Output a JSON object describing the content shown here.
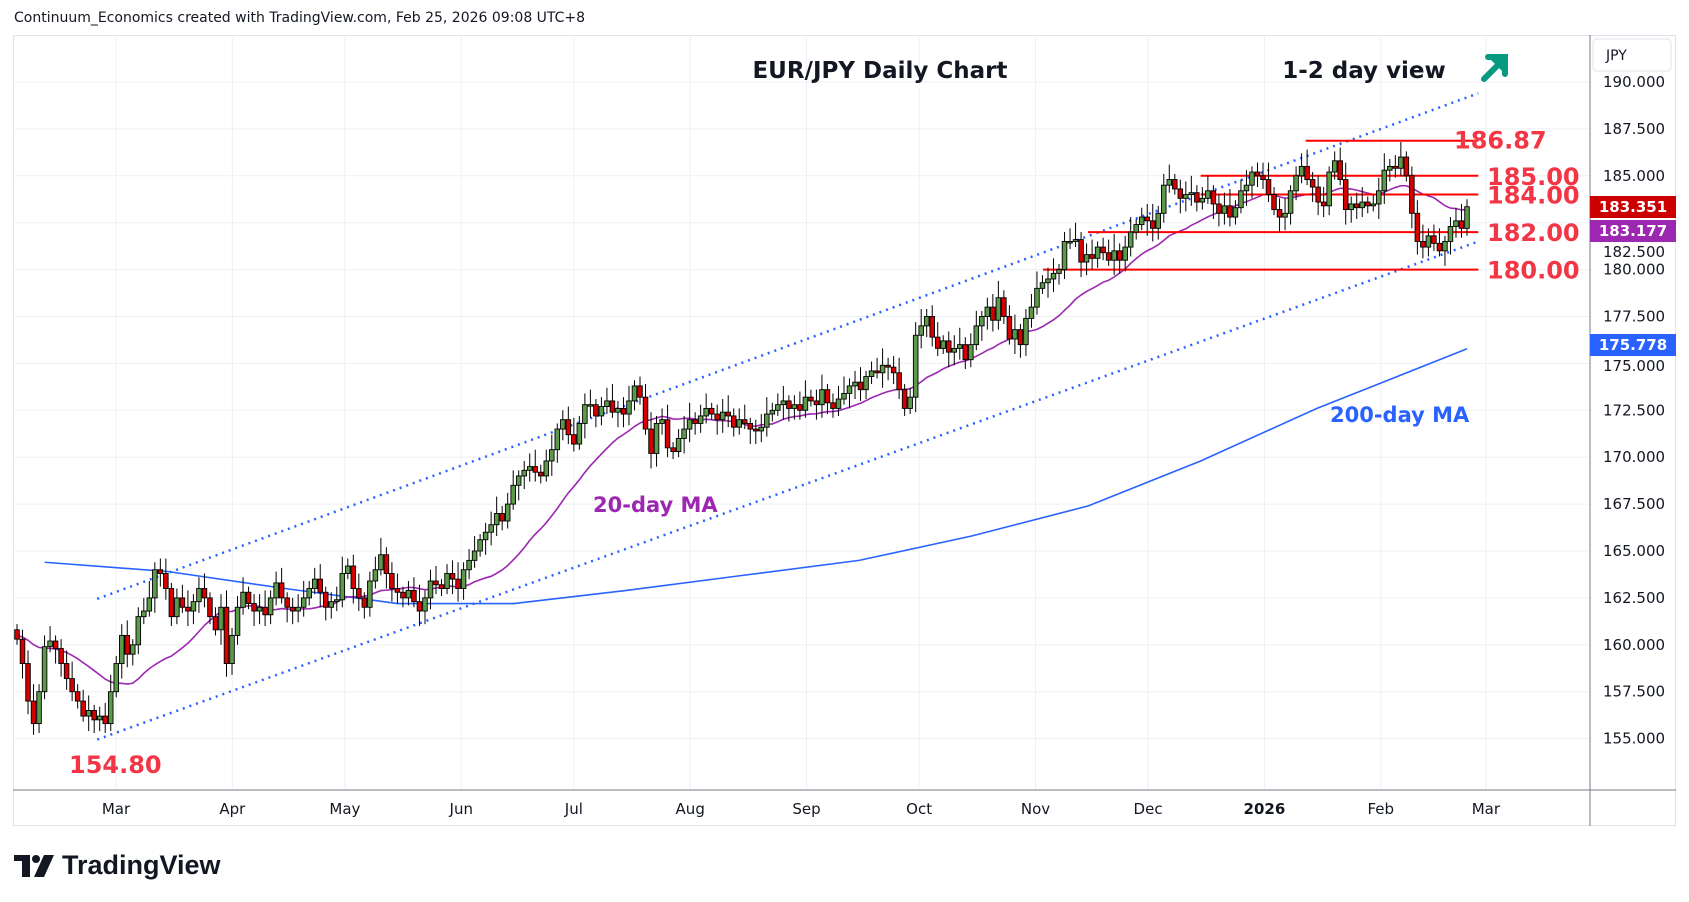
{
  "header": {
    "attribution": "Continuum_Economics created with TradingView.com, Feb 25, 2026 09:08 UTC+8"
  },
  "footer": {
    "logo_text": "TradingView"
  },
  "chart_data": {
    "type": "candlestick",
    "title": "EUR/JPY Daily Chart",
    "subtitle": "1-2 day view",
    "view_icon": "arrow-up-right-icon",
    "currency_label": "JPY",
    "ylim": [
      152.5,
      192
    ],
    "y_ticks": [
      "155.000",
      "157.500",
      "160.000",
      "162.500",
      "165.000",
      "167.500",
      "170.000",
      "172.500",
      "175.000",
      "177.500",
      "180.000",
      "182.500",
      "185.000",
      "187.500",
      "190.000"
    ],
    "x_ticks": [
      "Mar",
      "Apr",
      "May",
      "Jun",
      "Jul",
      "Aug",
      "Sep",
      "Oct",
      "Nov",
      "Dec",
      "2026",
      "Feb",
      "Mar"
    ],
    "x_tick_dates": [
      "2025-03-01",
      "2025-04-01",
      "2025-05-01",
      "2025-06-01",
      "2025-07-01",
      "2025-08-01",
      "2025-09-01",
      "2025-10-01",
      "2025-11-01",
      "2025-12-01",
      "2026-01-01",
      "2026-02-01",
      "2026-03-01"
    ],
    "grid": true,
    "closes": [
      160.3,
      159.0,
      157.0,
      155.8,
      157.5,
      159.9,
      160.2,
      159.8,
      159.0,
      158.2,
      157.5,
      157.0,
      156.2,
      156.5,
      156.0,
      156.2,
      155.8,
      157.5,
      159.0,
      160.5,
      159.5,
      160.0,
      161.5,
      161.8,
      162.5,
      164.0,
      163.8,
      163.0,
      161.5,
      162.5,
      162.0,
      161.8,
      162.3,
      163.0,
      162.5,
      161.5,
      160.8,
      162.0,
      159.0,
      160.5,
      162.0,
      162.8,
      162.2,
      161.8,
      162.0,
      161.6,
      162.5,
      163.3,
      162.5,
      162.0,
      161.8,
      162.0,
      162.5,
      163.0,
      163.5,
      162.8,
      162.0,
      162.3,
      162.4,
      163.8,
      164.2,
      163.0,
      162.5,
      162.0,
      163.4,
      164.0,
      164.8,
      163.8,
      163.0,
      162.8,
      162.5,
      162.9,
      162.3,
      161.8,
      162.5,
      163.4,
      163.2,
      163.0,
      163.8,
      163.5,
      163.0,
      164.0,
      164.5,
      165.0,
      165.6,
      166.0,
      166.4,
      167.0,
      166.6,
      167.5,
      168.5,
      169.0,
      169.3,
      169.5,
      169.2,
      169.0,
      169.8,
      170.4,
      171.5,
      172.0,
      171.2,
      170.7,
      171.8,
      172.8,
      172.8,
      172.2,
      172.7,
      173.0,
      172.4,
      172.6,
      172.3,
      173.0,
      173.8,
      173.2,
      171.5,
      170.2,
      171.8,
      172.0,
      170.5,
      170.3,
      171.0,
      171.5,
      172.0,
      171.8,
      172.2,
      172.6,
      172.3,
      172.0,
      172.4,
      172.2,
      171.6,
      172.0,
      171.8,
      171.5,
      171.4,
      171.6,
      172.3,
      172.5,
      172.8,
      173.0,
      172.6,
      172.8,
      172.5,
      173.2,
      173.0,
      172.8,
      173.6,
      172.9,
      172.6,
      173.1,
      173.4,
      173.8,
      174.0,
      173.6,
      174.3,
      174.6,
      174.5,
      174.9,
      174.8,
      174.5,
      173.6,
      172.6,
      173.2,
      176.5,
      177.0,
      177.5,
      176.4,
      175.8,
      176.2,
      175.6,
      175.8,
      176.0,
      175.2,
      176.0,
      177.0,
      177.5,
      178.0,
      177.3,
      178.5,
      177.5,
      176.3,
      176.8,
      176.0,
      177.4,
      178.0,
      179.0,
      179.3,
      179.5,
      179.8,
      180.0,
      181.5,
      181.5,
      181.6,
      180.4,
      180.8,
      180.6,
      181.2,
      180.9,
      180.5,
      181.0,
      180.5,
      181.2,
      182.0,
      182.4,
      182.8,
      182.6,
      182.2,
      183.0,
      184.5,
      184.8,
      184.3,
      183.8,
      184.0,
      184.1,
      183.6,
      183.8,
      184.2,
      183.5,
      183.0,
      183.4,
      182.8,
      183.3,
      184.2,
      184.5,
      185.2,
      185.0,
      184.8,
      184.0,
      183.2,
      182.8,
      183.0,
      184.2,
      185.0,
      185.5,
      184.8,
      184.4,
      183.6,
      183.4,
      185.2,
      185.8,
      184.8,
      183.2,
      183.5,
      183.3,
      183.6,
      183.4,
      183.5,
      184.2,
      185.3,
      185.5,
      185.4,
      186.0,
      185.0,
      183.0,
      181.5,
      181.2,
      181.8,
      181.4,
      181.0,
      181.5,
      182.3,
      182.6,
      182.2,
      183.351
    ],
    "colors": {
      "up": "#5b9a49",
      "down": "#d50000",
      "ma20": "#9c27b0",
      "ma200": "#2962ff",
      "levels": "#ff0000",
      "level_text": "#f23645",
      "channel": "#2962ff",
      "arrow": "#089981"
    },
    "ma20": {
      "label": "20-day MA",
      "last_value": "183.177"
    },
    "ma200": {
      "label": "200-day MA",
      "last_value": "175.778",
      "dates": [
        "2025-02-10",
        "2025-03-15",
        "2025-04-15",
        "2025-05-15",
        "2025-06-15",
        "2025-07-15",
        "2025-08-15",
        "2025-09-15",
        "2025-10-15",
        "2025-11-15",
        "2025-12-15",
        "2026-01-15",
        "2026-02-24"
      ],
      "values": [
        164.4,
        163.9,
        163.0,
        162.2,
        162.2,
        162.9,
        163.7,
        164.5,
        165.8,
        167.4,
        169.8,
        172.6,
        175.778
      ]
    },
    "last_price": "183.351",
    "channel": [
      {
        "from": [
          "2025-02-24",
          162.45
        ],
        "to": [
          "2026-02-27",
          189.4
        ]
      },
      {
        "from": [
          "2025-02-24",
          154.95
        ],
        "to": [
          "2026-02-27",
          181.5
        ]
      }
    ],
    "levels": [
      {
        "label": "186.87",
        "price": 186.87,
        "from": "2026-01-12",
        "to": "2026-02-27"
      },
      {
        "label": "185.00",
        "price": 185.0,
        "from": "2025-12-15",
        "to": "2026-02-27"
      },
      {
        "label": "184.00",
        "price": 184.0,
        "from": "2025-12-15",
        "to": "2026-02-27"
      },
      {
        "label": "182.00",
        "price": 182.0,
        "from": "2025-11-15",
        "to": "2026-02-27"
      },
      {
        "label": "180.00",
        "price": 180.0,
        "from": "2025-11-03",
        "to": "2026-02-27"
      }
    ],
    "low_annotation": {
      "label": "154.80",
      "price": 154.8
    }
  }
}
